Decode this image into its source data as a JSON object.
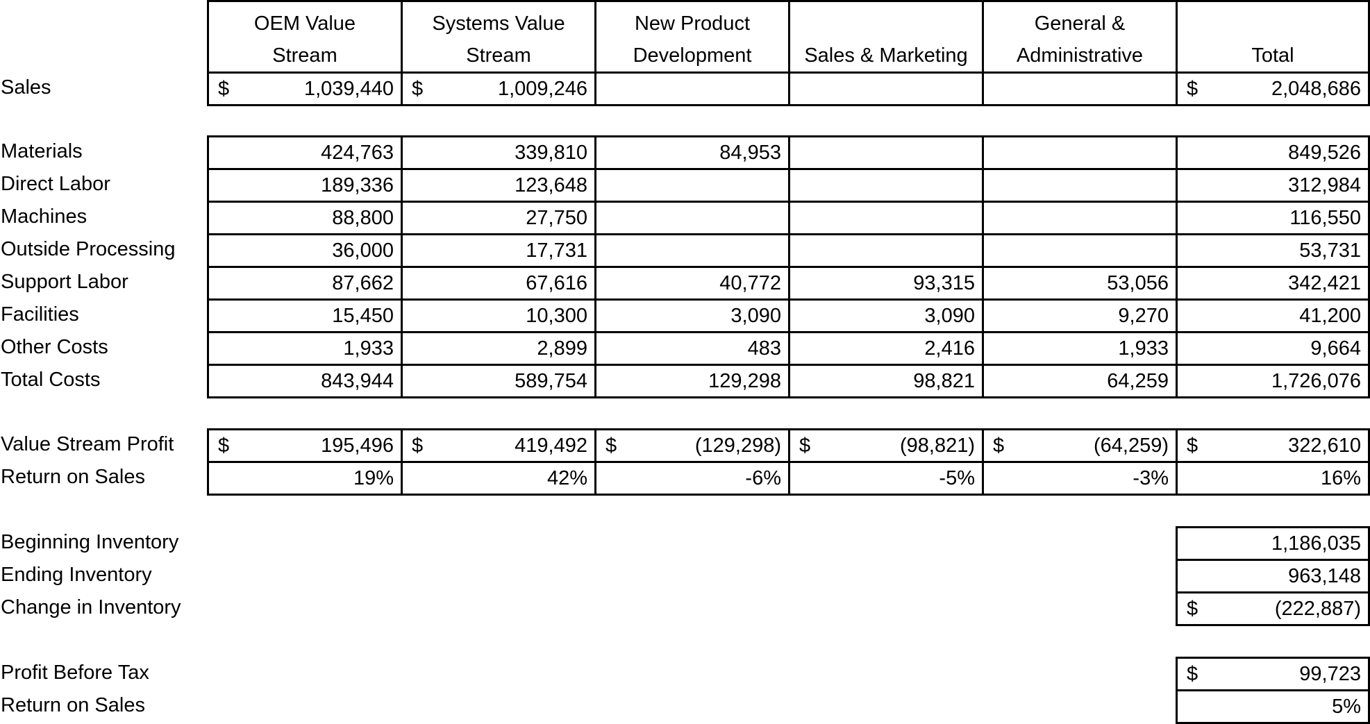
{
  "columns": [
    {
      "line1": "OEM Value",
      "line2": "Stream"
    },
    {
      "line1": "Systems Value",
      "line2": "Stream"
    },
    {
      "line1": "New Product",
      "line2": "Development"
    },
    {
      "line1": "",
      "line2": "Sales & Marketing"
    },
    {
      "line1": "General &",
      "line2": "Administrative"
    },
    {
      "line1": "",
      "line2": "Total"
    }
  ],
  "currency_symbol": "$",
  "sales": {
    "label": "Sales",
    "values": [
      "1,039,440",
      "1,009,246",
      "",
      "",
      "",
      "2,048,686"
    ]
  },
  "costs": [
    {
      "label": "Materials",
      "values": [
        "424,763",
        "339,810",
        "84,953",
        "",
        "",
        "849,526"
      ]
    },
    {
      "label": "Direct Labor",
      "values": [
        "189,336",
        "123,648",
        "",
        "",
        "",
        "312,984"
      ]
    },
    {
      "label": "Machines",
      "values": [
        "88,800",
        "27,750",
        "",
        "",
        "",
        "116,550"
      ]
    },
    {
      "label": "Outside Processing",
      "values": [
        "36,000",
        "17,731",
        "",
        "",
        "",
        "53,731"
      ]
    },
    {
      "label": "Support Labor",
      "values": [
        "87,662",
        "67,616",
        "40,772",
        "93,315",
        "53,056",
        "342,421"
      ]
    },
    {
      "label": "Facilities",
      "values": [
        "15,450",
        "10,300",
        "3,090",
        "3,090",
        "9,270",
        "41,200"
      ]
    },
    {
      "label": "Other Costs",
      "values": [
        "1,933",
        "2,899",
        "483",
        "2,416",
        "1,933",
        "9,664"
      ]
    },
    {
      "label": "Total Costs",
      "values": [
        "843,944",
        "589,754",
        "129,298",
        "98,821",
        "64,259",
        "1,726,076"
      ]
    }
  ],
  "profit": {
    "label": "Value Stream Profit",
    "values": [
      "195,496",
      "419,492",
      "(129,298)",
      "(98,821)",
      "(64,259)",
      "322,610"
    ]
  },
  "return_on_sales": {
    "label": "Return on Sales",
    "values": [
      "19%",
      "42%",
      "-6%",
      "-5%",
      "-3%",
      "16%"
    ]
  },
  "inventory": [
    {
      "label": "Beginning Inventory",
      "value": "1,186,035",
      "dollar": false
    },
    {
      "label": "Ending Inventory",
      "value": "963,148",
      "dollar": false
    },
    {
      "label": "Change in Inventory",
      "value": "(222,887)",
      "dollar": true
    }
  ],
  "pretax": [
    {
      "label": "Profit Before Tax",
      "value": "99,723",
      "dollar": true
    },
    {
      "label": "Return on Sales",
      "value": "5%",
      "dollar": false
    }
  ]
}
